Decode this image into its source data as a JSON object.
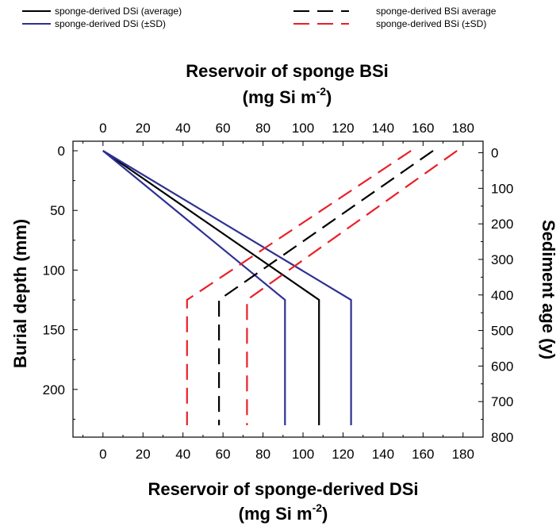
{
  "legend": {
    "left": [
      {
        "label": "sponge-derived DSi (average)",
        "color": "#000000",
        "style": "solid"
      },
      {
        "label": "sponge-derived DSi (±SD)",
        "color": "#2e3192",
        "style": "solid"
      }
    ],
    "right": [
      {
        "label": "sponge-derived BSi average",
        "color": "#000000",
        "style": "dashed"
      },
      {
        "label": "sponge-derived BSi (±SD)",
        "color": "#e8202a",
        "style": "dashed"
      }
    ]
  },
  "axes": {
    "top": {
      "title": "Reservoir of sponge BSi",
      "unit_prefix": "(mg Si m",
      "unit_sup": "-2",
      "unit_suffix": ")"
    },
    "bottom": {
      "title": "Reservoir of sponge-derived DSi",
      "unit_prefix": "(mg Si m",
      "unit_sup": "-2",
      "unit_suffix": ")"
    },
    "left": {
      "title": "Burial depth (mm)"
    },
    "right": {
      "title": "Sediment age (y)"
    }
  },
  "chart_data": {
    "type": "line",
    "x_bottom": {
      "label": "Reservoir of sponge-derived DSi (mg Si m-2)",
      "range": [
        -15,
        190
      ],
      "ticks": [
        0,
        20,
        40,
        60,
        80,
        100,
        120,
        140,
        160,
        180
      ]
    },
    "x_top": {
      "label": "Reservoir of sponge BSi (mg Si m-2)",
      "range": [
        -15,
        190
      ],
      "ticks": [
        0,
        20,
        40,
        60,
        80,
        100,
        120,
        140,
        160,
        180
      ]
    },
    "y_left": {
      "label": "Burial depth (mm)",
      "range": [
        -8,
        240
      ],
      "ticks": [
        0,
        50,
        100,
        150,
        200
      ],
      "inverted": true
    },
    "y_right": {
      "label": "Sediment age (y)",
      "range": [
        -32.5,
        800
      ],
      "ticks": [
        0,
        100,
        200,
        300,
        400,
        500,
        600,
        700,
        800
      ],
      "inverted": true
    },
    "grid": false,
    "series": [
      {
        "name": "sponge-derived DSi (average)",
        "color": "#000000",
        "style": "solid",
        "x_axis": "bottom",
        "points": [
          [
            0,
            0
          ],
          [
            108,
            125
          ],
          [
            108,
            230
          ]
        ]
      },
      {
        "name": "sponge-derived DSi (±SD)",
        "color": "#2e3192",
        "style": "solid",
        "x_axis": "bottom",
        "points": [
          [
            0,
            0
          ],
          [
            91,
            125
          ],
          [
            91,
            230
          ]
        ]
      },
      {
        "name": "sponge-derived DSi (±SD)",
        "color": "#2e3192",
        "style": "solid",
        "x_axis": "bottom",
        "points": [
          [
            0,
            0
          ],
          [
            124,
            125
          ],
          [
            124,
            230
          ]
        ]
      },
      {
        "name": "sponge-derived BSi average",
        "color": "#000000",
        "style": "dashed",
        "x_axis": "top",
        "points": [
          [
            165,
            0
          ],
          [
            58,
            125
          ],
          [
            58,
            230
          ]
        ]
      },
      {
        "name": "sponge-derived BSi (±SD)",
        "color": "#e8202a",
        "style": "dashed",
        "x_axis": "top",
        "points": [
          [
            154,
            0
          ],
          [
            42,
            125
          ],
          [
            42,
            230
          ]
        ]
      },
      {
        "name": "sponge-derived BSi (±SD)",
        "color": "#e8202a",
        "style": "dashed",
        "x_axis": "top",
        "points": [
          [
            177,
            0
          ],
          [
            72,
            125
          ],
          [
            72,
            230
          ]
        ]
      }
    ]
  }
}
